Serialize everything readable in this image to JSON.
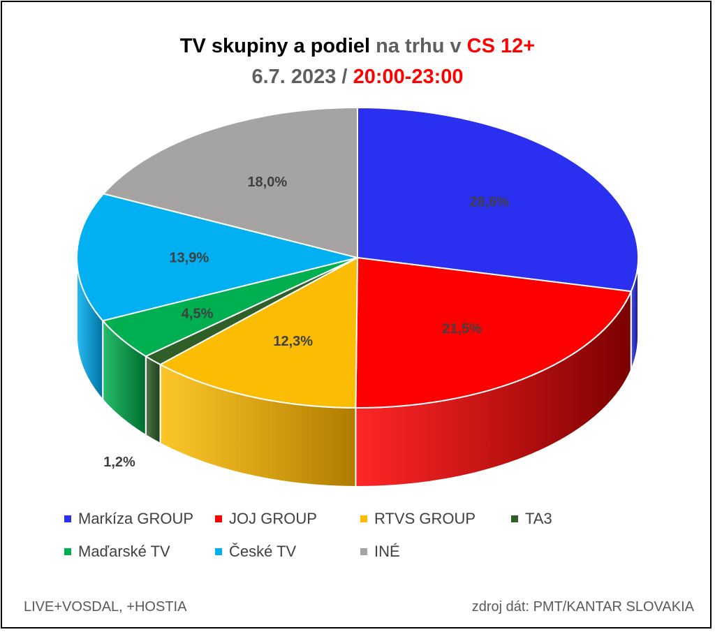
{
  "title": {
    "line1_part1": "TV skupiny a podiel",
    "line1_part2": " na trhu v ",
    "line1_part3": "CS 12+",
    "line2_part1": "6.7. 2023 / ",
    "line2_part2": "20:00-23:00"
  },
  "chart_data": {
    "type": "pie",
    "labels": [
      "Markíza GROUP",
      "JOJ GROUP",
      "RTVS GROUP",
      "TA3",
      "Maďarské  TV",
      "České  TV",
      "INÉ"
    ],
    "values": [
      28.6,
      21.5,
      12.3,
      1.2,
      4.5,
      13.9,
      18.0
    ],
    "data_labels": [
      "28,6%",
      "21,5%",
      "12,3%",
      "1,2%",
      "4,5%",
      "13,9%",
      "18,0%"
    ],
    "colors": [
      "#2b2fef",
      "#ff0000",
      "#fbbc04",
      "#2f5f27",
      "#00b050",
      "#00b0f0",
      "#a6a3a3"
    ],
    "side_colors": [
      "#15178a",
      "#7a0000",
      "#b07a00",
      "#1e3d18",
      "#006b30",
      "#0070a0",
      "#6b6868"
    ],
    "legend_placement": "bottom"
  },
  "footer": {
    "left": "LIVE+VOSDAL,  +HOSTIA",
    "right": "zdroj dát: PMT/KANTAR SLOVAKIA"
  }
}
